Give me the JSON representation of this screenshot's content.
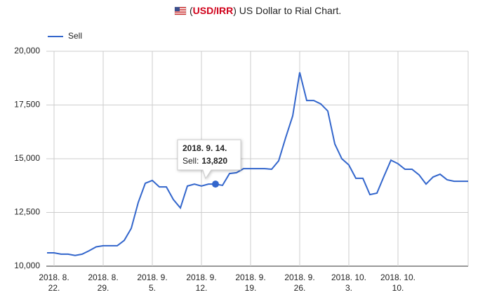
{
  "chart_data": {
    "type": "line",
    "title": [
      "(",
      "USD/IRR",
      ") US Dollar to Rial Chart."
    ],
    "categories": [
      null,
      [
        "2018. 8.",
        "22."
      ],
      null,
      null,
      null,
      null,
      null,
      null,
      [
        "2018. 8.",
        "29."
      ],
      null,
      null,
      null,
      null,
      null,
      null,
      [
        "2018. 9.",
        "5."
      ],
      null,
      null,
      null,
      null,
      null,
      null,
      [
        "2018. 9.",
        "12."
      ],
      null,
      null,
      null,
      null,
      null,
      null,
      [
        "2018. 9.",
        "19."
      ],
      null,
      null,
      null,
      null,
      null,
      null,
      [
        "2018. 9.",
        "26."
      ],
      null,
      null,
      null,
      null,
      null,
      null,
      [
        "2018. 10.",
        "3."
      ],
      null,
      null,
      null,
      null,
      null,
      null,
      [
        "2018. 10.",
        "10."
      ],
      null,
      null,
      null,
      null,
      null,
      null,
      null,
      null,
      null,
      null
    ],
    "series": [
      {
        "name": "Sell",
        "color": "#3366cc",
        "values": [
          10620,
          10620,
          10560,
          10560,
          10500,
          10560,
          10720,
          10900,
          10950,
          10950,
          10950,
          11200,
          11760,
          12970,
          13860,
          13990,
          13690,
          13690,
          13100,
          12710,
          13730,
          13820,
          13730,
          13820,
          13820,
          13760,
          14310,
          14350,
          14540,
          14540,
          14540,
          14540,
          14510,
          14900,
          15980,
          16990,
          19020,
          17710,
          17710,
          17550,
          17220,
          15690,
          15000,
          14710,
          14090,
          14090,
          13330,
          13400,
          14180,
          14930,
          14770,
          14510,
          14510,
          14250,
          13820,
          14150,
          14280,
          14020,
          13950,
          13950,
          13950
        ]
      }
    ],
    "ylim": [
      10000,
      20000
    ],
    "yticks": [
      {
        "value": 10000,
        "label": "10,000"
      },
      {
        "value": 12500,
        "label": "12,500"
      },
      {
        "value": 15000,
        "label": "15,000"
      },
      {
        "value": 17500,
        "label": "17,500"
      },
      {
        "value": 20000,
        "label": "20,000"
      }
    ],
    "grid": true,
    "legend": "top-left",
    "tooltip": {
      "point": 24,
      "title": "2018. 9. 14.",
      "label": "Sell:",
      "value": 13820,
      "value_label": "13,820"
    }
  }
}
